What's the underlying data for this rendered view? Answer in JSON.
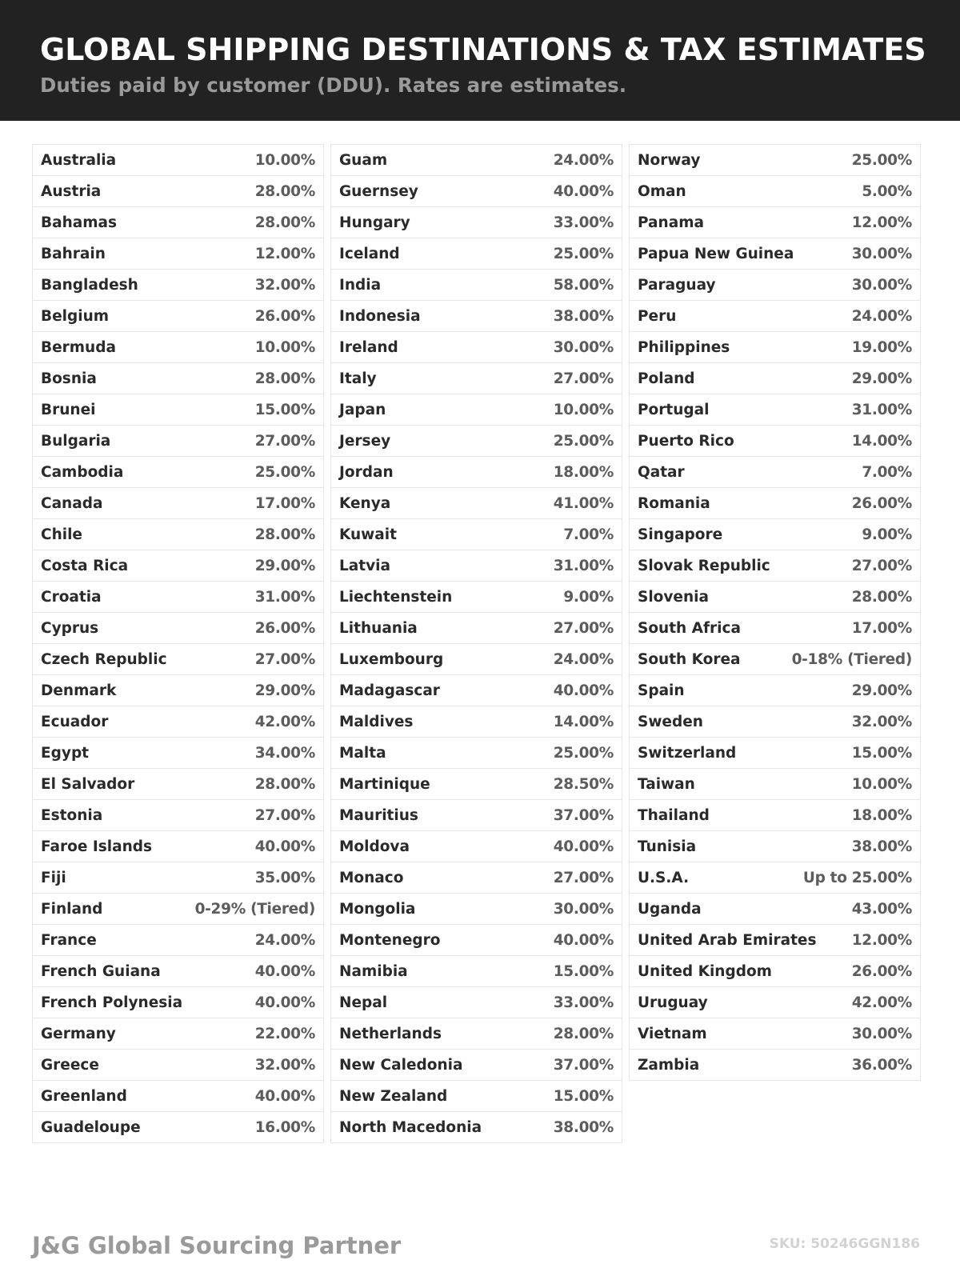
{
  "header": {
    "title": "GLOBAL SHIPPING DESTINATIONS & TAX ESTIMATES",
    "subtitle": "Duties paid by customer (DDU). Rates are estimates."
  },
  "columns": [
    [
      [
        "Australia",
        "10.00%"
      ],
      [
        "Austria",
        "28.00%"
      ],
      [
        "Bahamas",
        "28.00%"
      ],
      [
        "Bahrain",
        "12.00%"
      ],
      [
        "Bangladesh",
        "32.00%"
      ],
      [
        "Belgium",
        "26.00%"
      ],
      [
        "Bermuda",
        "10.00%"
      ],
      [
        "Bosnia",
        "28.00%"
      ],
      [
        "Brunei",
        "15.00%"
      ],
      [
        "Bulgaria",
        "27.00%"
      ],
      [
        "Cambodia",
        "25.00%"
      ],
      [
        "Canada",
        "17.00%"
      ],
      [
        "Chile",
        "28.00%"
      ],
      [
        "Costa Rica",
        "29.00%"
      ],
      [
        "Croatia",
        "31.00%"
      ],
      [
        "Cyprus",
        "26.00%"
      ],
      [
        "Czech Republic",
        "27.00%"
      ],
      [
        "Denmark",
        "29.00%"
      ],
      [
        "Ecuador",
        "42.00%"
      ],
      [
        "Egypt",
        "34.00%"
      ],
      [
        "El Salvador",
        "28.00%"
      ],
      [
        "Estonia",
        "27.00%"
      ],
      [
        "Faroe Islands",
        "40.00%"
      ],
      [
        "Fiji",
        "35.00%"
      ],
      [
        "Finland",
        "0-29% (Tiered)"
      ],
      [
        "France",
        "24.00%"
      ],
      [
        "French Guiana",
        "40.00%"
      ],
      [
        "French Polynesia",
        "40.00%"
      ],
      [
        "Germany",
        "22.00%"
      ],
      [
        "Greece",
        "32.00%"
      ],
      [
        "Greenland",
        "40.00%"
      ],
      [
        "Guadeloupe",
        "16.00%"
      ]
    ],
    [
      [
        "Guam",
        "24.00%"
      ],
      [
        "Guernsey",
        "40.00%"
      ],
      [
        "Hungary",
        "33.00%"
      ],
      [
        "Iceland",
        "25.00%"
      ],
      [
        "India",
        "58.00%"
      ],
      [
        "Indonesia",
        "38.00%"
      ],
      [
        "Ireland",
        "30.00%"
      ],
      [
        "Italy",
        "27.00%"
      ],
      [
        "Japan",
        "10.00%"
      ],
      [
        "Jersey",
        "25.00%"
      ],
      [
        "Jordan",
        "18.00%"
      ],
      [
        "Kenya",
        "41.00%"
      ],
      [
        "Kuwait",
        "7.00%"
      ],
      [
        "Latvia",
        "31.00%"
      ],
      [
        "Liechtenstein",
        "9.00%"
      ],
      [
        "Lithuania",
        "27.00%"
      ],
      [
        "Luxembourg",
        "24.00%"
      ],
      [
        "Madagascar",
        "40.00%"
      ],
      [
        "Maldives",
        "14.00%"
      ],
      [
        "Malta",
        "25.00%"
      ],
      [
        "Martinique",
        "28.50%"
      ],
      [
        "Mauritius",
        "37.00%"
      ],
      [
        "Moldova",
        "40.00%"
      ],
      [
        "Monaco",
        "27.00%"
      ],
      [
        "Mongolia",
        "30.00%"
      ],
      [
        "Montenegro",
        "40.00%"
      ],
      [
        "Namibia",
        "15.00%"
      ],
      [
        "Nepal",
        "33.00%"
      ],
      [
        "Netherlands",
        "28.00%"
      ],
      [
        "New Caledonia",
        "37.00%"
      ],
      [
        "New Zealand",
        "15.00%"
      ],
      [
        "North Macedonia",
        "38.00%"
      ]
    ],
    [
      [
        "Norway",
        "25.00%"
      ],
      [
        "Oman",
        "5.00%"
      ],
      [
        "Panama",
        "12.00%"
      ],
      [
        "Papua New Guinea",
        "30.00%"
      ],
      [
        "Paraguay",
        "30.00%"
      ],
      [
        "Peru",
        "24.00%"
      ],
      [
        "Philippines",
        "19.00%"
      ],
      [
        "Poland",
        "29.00%"
      ],
      [
        "Portugal",
        "31.00%"
      ],
      [
        "Puerto Rico",
        "14.00%"
      ],
      [
        "Qatar",
        "7.00%"
      ],
      [
        "Romania",
        "26.00%"
      ],
      [
        "Singapore",
        "9.00%"
      ],
      [
        "Slovak Republic",
        "27.00%"
      ],
      [
        "Slovenia",
        "28.00%"
      ],
      [
        "South Africa",
        "17.00%"
      ],
      [
        "South Korea",
        "0-18% (Tiered)"
      ],
      [
        "Spain",
        "29.00%"
      ],
      [
        "Sweden",
        "32.00%"
      ],
      [
        "Switzerland",
        "15.00%"
      ],
      [
        "Taiwan",
        "10.00%"
      ],
      [
        "Thailand",
        "18.00%"
      ],
      [
        "Tunisia",
        "38.00%"
      ],
      [
        "U.S.A.",
        "Up to 25.00%"
      ],
      [
        "Uganda",
        "43.00%"
      ],
      [
        "United Arab Emirates",
        "12.00%"
      ],
      [
        "United Kingdom",
        "26.00%"
      ],
      [
        "Uruguay",
        "42.00%"
      ],
      [
        "Vietnam",
        "30.00%"
      ],
      [
        "Zambia",
        "36.00%"
      ]
    ]
  ],
  "footer": {
    "brand": "J&G Global Sourcing Partner",
    "sku": "SKU: 50246GGN186"
  }
}
